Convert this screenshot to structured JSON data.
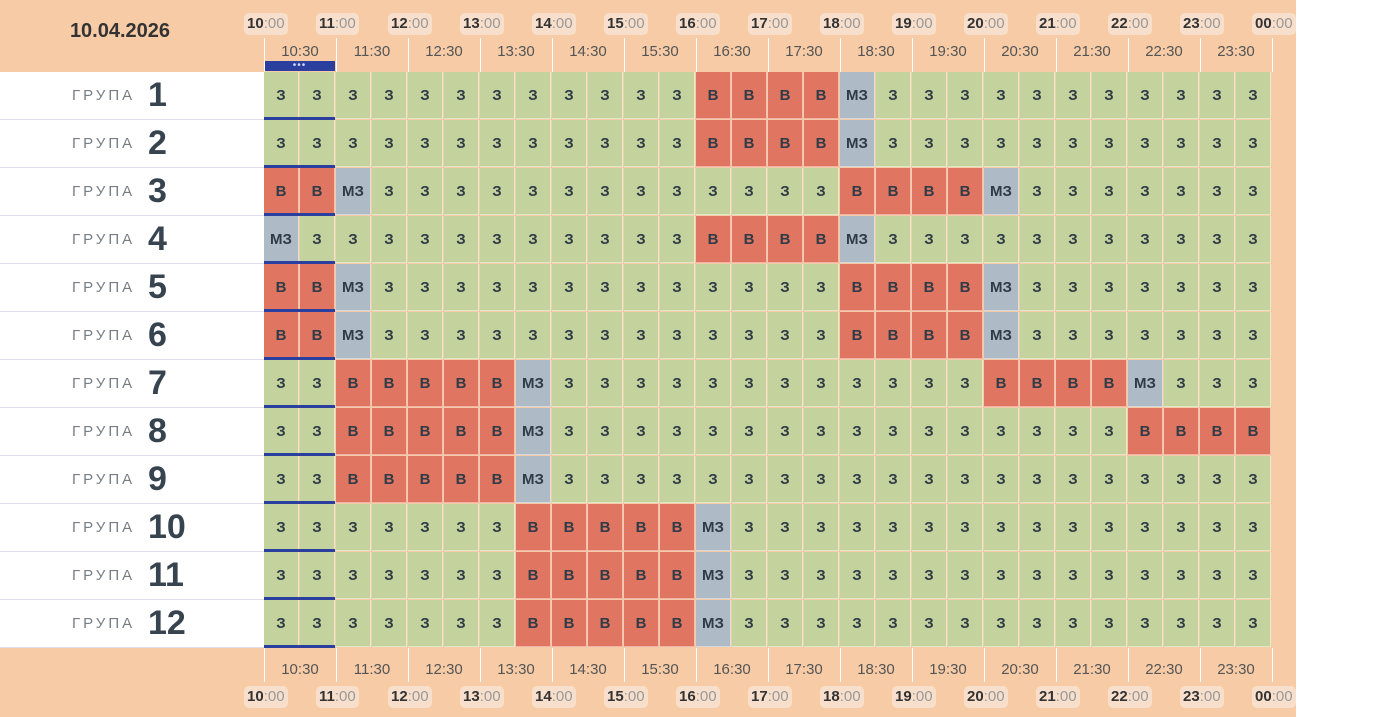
{
  "date": "10.04.2026",
  "hours": [
    "10",
    "11",
    "12",
    "13",
    "14",
    "15",
    "16",
    "17",
    "18",
    "19",
    "20",
    "21",
    "22",
    "23",
    "00"
  ],
  "hour_suffix": ":00",
  "half_hours": [
    "10:30",
    "11:30",
    "12:30",
    "13:30",
    "14:30",
    "15:30",
    "16:30",
    "17:30",
    "18:30",
    "19:30",
    "20:30",
    "21:30",
    "22:30",
    "23:30"
  ],
  "group_word": "ГРУПА",
  "now_marker": "•••",
  "legend": {
    "z": "З",
    "v": "В",
    "mz": "МЗ"
  },
  "colors": {
    "z": "#c4d39e",
    "v": "#e07562",
    "mz": "#aebac5",
    "background": "#f6cba6",
    "marker": "#2b3f9f"
  },
  "groups": [
    {
      "number": "1",
      "cells": [
        "З",
        "З",
        "З",
        "З",
        "З",
        "З",
        "З",
        "З",
        "З",
        "З",
        "З",
        "З",
        "В",
        "В",
        "В",
        "В",
        "МЗ",
        "З",
        "З",
        "З",
        "З",
        "З",
        "З",
        "З",
        "З",
        "З",
        "З",
        "З"
      ]
    },
    {
      "number": "2",
      "cells": [
        "З",
        "З",
        "З",
        "З",
        "З",
        "З",
        "З",
        "З",
        "З",
        "З",
        "З",
        "З",
        "В",
        "В",
        "В",
        "В",
        "МЗ",
        "З",
        "З",
        "З",
        "З",
        "З",
        "З",
        "З",
        "З",
        "З",
        "З",
        "З"
      ]
    },
    {
      "number": "3",
      "cells": [
        "В",
        "В",
        "МЗ",
        "З",
        "З",
        "З",
        "З",
        "З",
        "З",
        "З",
        "З",
        "З",
        "З",
        "З",
        "З",
        "З",
        "В",
        "В",
        "В",
        "В",
        "МЗ",
        "З",
        "З",
        "З",
        "З",
        "З",
        "З",
        "З"
      ]
    },
    {
      "number": "4",
      "cells": [
        "МЗ",
        "З",
        "З",
        "З",
        "З",
        "З",
        "З",
        "З",
        "З",
        "З",
        "З",
        "З",
        "В",
        "В",
        "В",
        "В",
        "МЗ",
        "З",
        "З",
        "З",
        "З",
        "З",
        "З",
        "З",
        "З",
        "З",
        "З",
        "З"
      ]
    },
    {
      "number": "5",
      "cells": [
        "В",
        "В",
        "МЗ",
        "З",
        "З",
        "З",
        "З",
        "З",
        "З",
        "З",
        "З",
        "З",
        "З",
        "З",
        "З",
        "З",
        "В",
        "В",
        "В",
        "В",
        "МЗ",
        "З",
        "З",
        "З",
        "З",
        "З",
        "З",
        "З"
      ]
    },
    {
      "number": "6",
      "cells": [
        "В",
        "В",
        "МЗ",
        "З",
        "З",
        "З",
        "З",
        "З",
        "З",
        "З",
        "З",
        "З",
        "З",
        "З",
        "З",
        "З",
        "В",
        "В",
        "В",
        "В",
        "МЗ",
        "З",
        "З",
        "З",
        "З",
        "З",
        "З",
        "З"
      ]
    },
    {
      "number": "7",
      "cells": [
        "З",
        "З",
        "В",
        "В",
        "В",
        "В",
        "В",
        "МЗ",
        "З",
        "З",
        "З",
        "З",
        "З",
        "З",
        "З",
        "З",
        "З",
        "З",
        "З",
        "З",
        "В",
        "В",
        "В",
        "В",
        "МЗ",
        "З",
        "З",
        "З"
      ]
    },
    {
      "number": "8",
      "cells": [
        "З",
        "З",
        "В",
        "В",
        "В",
        "В",
        "В",
        "МЗ",
        "З",
        "З",
        "З",
        "З",
        "З",
        "З",
        "З",
        "З",
        "З",
        "З",
        "З",
        "З",
        "З",
        "З",
        "З",
        "З",
        "В",
        "В",
        "В",
        "В"
      ]
    },
    {
      "number": "9",
      "cells": [
        "З",
        "З",
        "В",
        "В",
        "В",
        "В",
        "В",
        "МЗ",
        "З",
        "З",
        "З",
        "З",
        "З",
        "З",
        "З",
        "З",
        "З",
        "З",
        "З",
        "З",
        "З",
        "З",
        "З",
        "З",
        "З",
        "З",
        "З",
        "З"
      ]
    },
    {
      "number": "10",
      "cells": [
        "З",
        "З",
        "З",
        "З",
        "З",
        "З",
        "З",
        "В",
        "В",
        "В",
        "В",
        "В",
        "МЗ",
        "З",
        "З",
        "З",
        "З",
        "З",
        "З",
        "З",
        "З",
        "З",
        "З",
        "З",
        "З",
        "З",
        "З",
        "З"
      ]
    },
    {
      "number": "11",
      "cells": [
        "З",
        "З",
        "З",
        "З",
        "З",
        "З",
        "З",
        "В",
        "В",
        "В",
        "В",
        "В",
        "МЗ",
        "З",
        "З",
        "З",
        "З",
        "З",
        "З",
        "З",
        "З",
        "З",
        "З",
        "З",
        "З",
        "З",
        "З",
        "З"
      ]
    },
    {
      "number": "12",
      "cells": [
        "З",
        "З",
        "З",
        "З",
        "З",
        "З",
        "З",
        "В",
        "В",
        "В",
        "В",
        "В",
        "МЗ",
        "З",
        "З",
        "З",
        "З",
        "З",
        "З",
        "З",
        "З",
        "З",
        "З",
        "З",
        "З",
        "З",
        "З",
        "З"
      ]
    }
  ]
}
